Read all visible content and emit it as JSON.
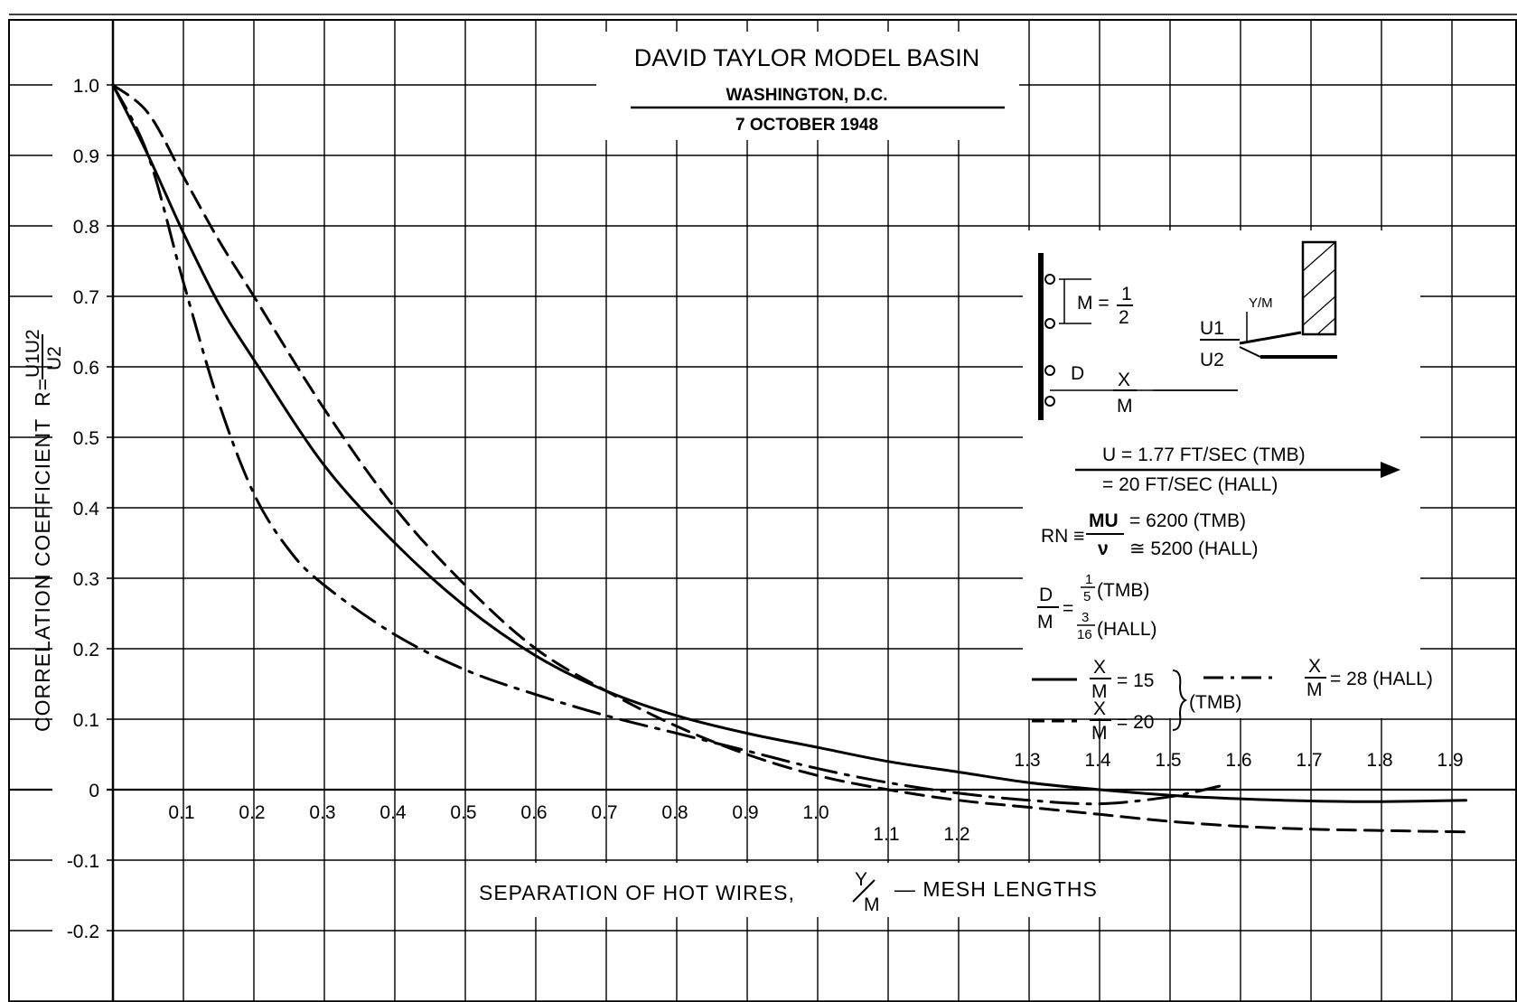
{
  "header": {
    "title": "DAVID TAYLOR MODEL BASIN",
    "location": "WASHINGTON, D.C.",
    "date": "7 OCTOBER 1948"
  },
  "axes": {
    "ylabel_main": "CORRELATION COEFFICIENT",
    "ylabel_formula": "R=",
    "ylabel_num": "U1U2",
    "ylabel_den": "U2",
    "xlabel_left": "SEPARATION OF HOT WIRES,",
    "xlabel_y": "Y",
    "xlabel_m": "M",
    "xlabel_right": "— MESH LENGTHS"
  },
  "diagram": {
    "m_label": "M =",
    "m_num": "1",
    "m_den": "2",
    "d_label": "D",
    "x_num": "X",
    "x_den": "M",
    "ym_label": "Y/M",
    "u1": "U1",
    "u2": "U2"
  },
  "notes": {
    "u_line1": "U = 1.77  FT/SEC (TMB)",
    "u_line2": "= 20  FT/SEC (HALL)",
    "rn_label": "RN ≡",
    "rn_num": "MU",
    "rn_den": "ν",
    "rn_tmb": "= 6200 (TMB)",
    "rn_hall": "≅ 5200 (HALL)",
    "dm_num": "D",
    "dm_den": "M",
    "dm_eq": "=",
    "dm_tmb_num": "1",
    "dm_tmb_den": "5",
    "dm_tmb": "(TMB)",
    "dm_hall_num": "3",
    "dm_hall_den": "16",
    "dm_hall": "(HALL)"
  },
  "legend": {
    "frac_num": "X",
    "frac_den": "M",
    "entry1": "= 15",
    "entry2": "= 20",
    "group": "(TMB)",
    "entry3": "= 28 (HALL)"
  },
  "chart_data": {
    "type": "line",
    "xlabel": "SEPARATION OF HOT WIRES, Y/M — MESH LENGTHS",
    "ylabel": "CORRELATION COEFFICIENT R=U1U2/U2",
    "xlim": [
      0,
      2.0
    ],
    "ylim": [
      -0.3,
      1.1
    ],
    "x_ticks": [
      "0.1",
      "0.2",
      "0.3",
      "0.4",
      "0.5",
      "0.6",
      "0.7",
      "0.8",
      "0.9",
      "1.0",
      "1.1",
      "1.2",
      "1.3",
      "1.4",
      "1.5",
      "1.6",
      "1.7",
      "1.8",
      "1.9"
    ],
    "y_ticks": [
      "1.0",
      "0.9",
      "0.8",
      "0.7",
      "0.6",
      "0.5",
      "0.4",
      "0.3",
      "0.2",
      "0.1",
      "0",
      "-0.1",
      "-0.2"
    ],
    "grid": true,
    "legend_position": "right",
    "series": [
      {
        "name": "X/M = 15 (TMB)",
        "style": "solid",
        "x": [
          0,
          0.05,
          0.1,
          0.15,
          0.2,
          0.3,
          0.4,
          0.5,
          0.6,
          0.7,
          0.8,
          0.9,
          1.0,
          1.1,
          1.2,
          1.3,
          1.4,
          1.5,
          1.6,
          1.7,
          1.8,
          1.92
        ],
        "y": [
          1.0,
          0.9,
          0.79,
          0.69,
          0.61,
          0.46,
          0.35,
          0.26,
          0.19,
          0.14,
          0.105,
          0.08,
          0.06,
          0.04,
          0.025,
          0.01,
          0.0,
          -0.008,
          -0.013,
          -0.016,
          -0.017,
          -0.015
        ]
      },
      {
        "name": "X/M = 20 (TMB)",
        "style": "dashed",
        "x": [
          0,
          0.05,
          0.1,
          0.15,
          0.2,
          0.3,
          0.4,
          0.5,
          0.6,
          0.7,
          0.8,
          0.9,
          1.0,
          1.1,
          1.2,
          1.3,
          1.4,
          1.5,
          1.6,
          1.7,
          1.8,
          1.92
        ],
        "y": [
          1.0,
          0.96,
          0.87,
          0.78,
          0.7,
          0.54,
          0.4,
          0.29,
          0.2,
          0.14,
          0.09,
          0.05,
          0.02,
          0.0,
          -0.015,
          -0.025,
          -0.035,
          -0.045,
          -0.052,
          -0.056,
          -0.058,
          -0.06
        ]
      },
      {
        "name": "X/M = 28 (HALL)",
        "style": "dash-dot",
        "x": [
          0,
          0.05,
          0.1,
          0.15,
          0.2,
          0.25,
          0.3,
          0.4,
          0.5,
          0.6,
          0.7,
          0.8,
          0.9,
          1.0,
          1.1,
          1.2,
          1.3,
          1.4,
          1.5,
          1.57
        ],
        "y": [
          1.0,
          0.9,
          0.72,
          0.55,
          0.42,
          0.34,
          0.29,
          0.22,
          0.17,
          0.135,
          0.105,
          0.08,
          0.055,
          0.03,
          0.01,
          -0.005,
          -0.015,
          -0.02,
          -0.01,
          0.005
        ]
      }
    ]
  }
}
